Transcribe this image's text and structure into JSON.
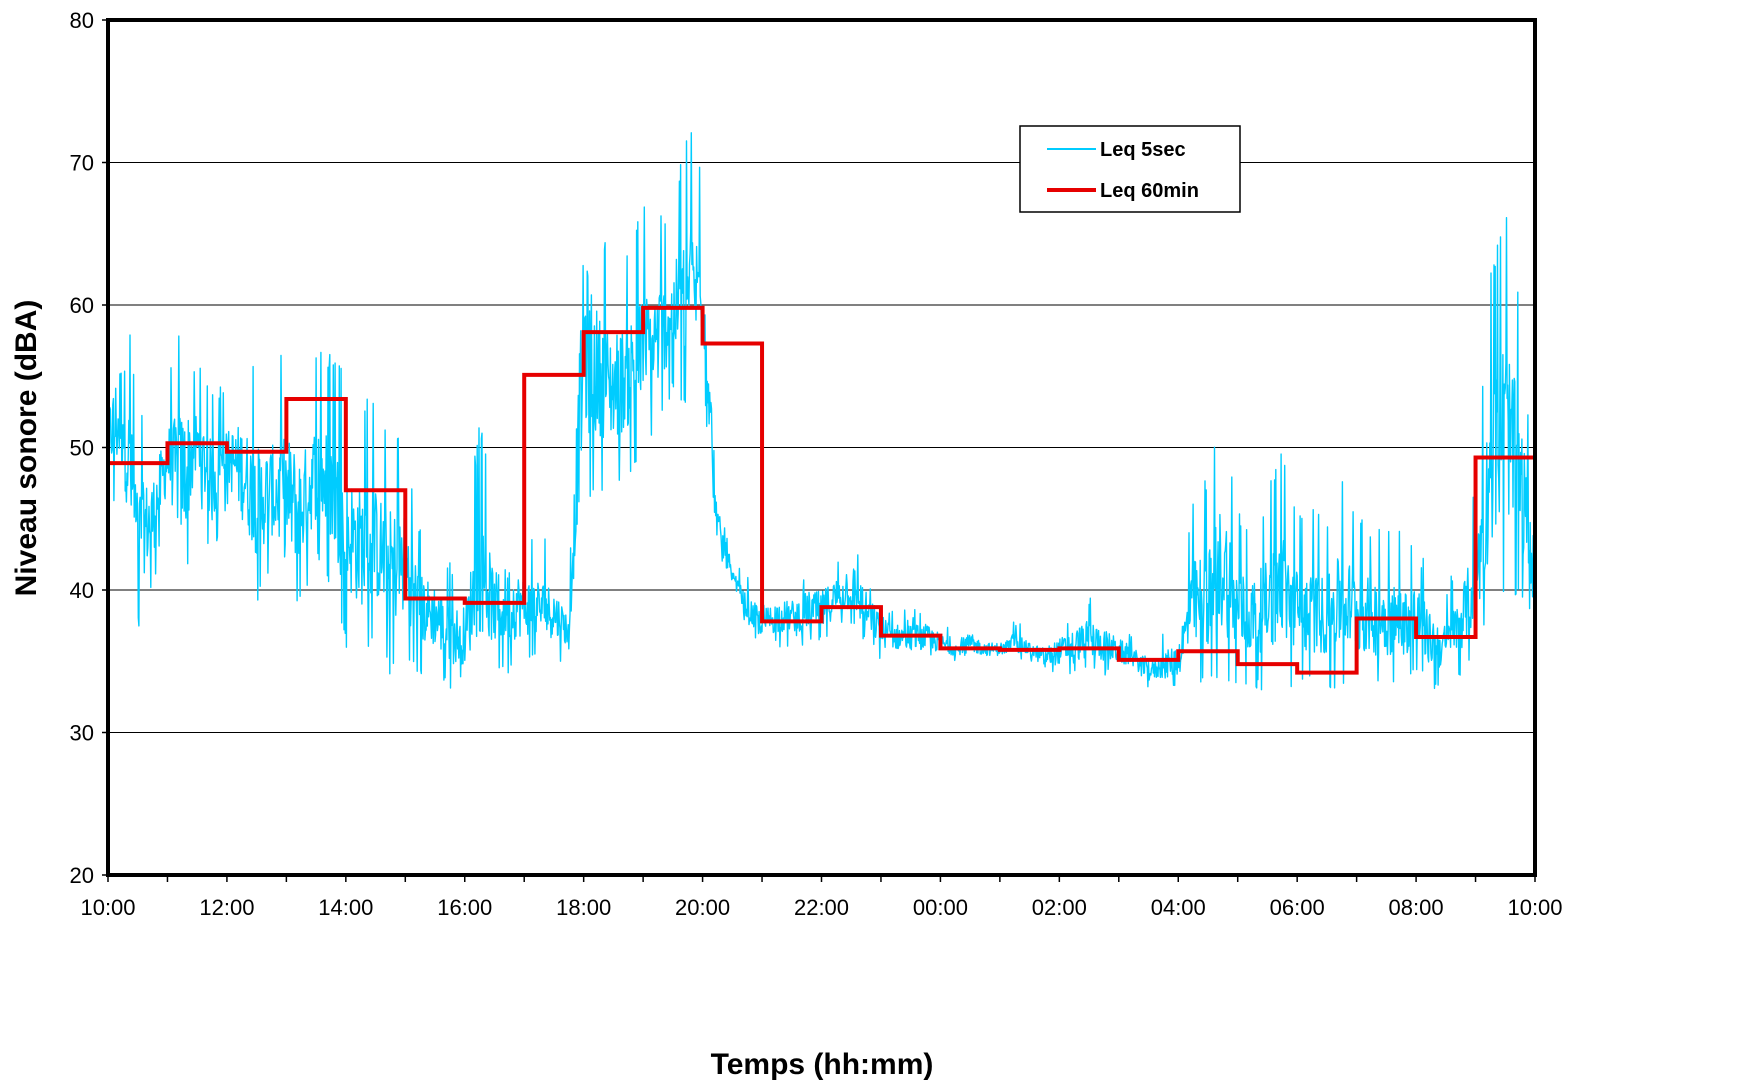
{
  "chart_data": {
    "type": "line",
    "title": "",
    "xlabel": "Temps (hh:mm)",
    "ylabel": "Niveau sonore (dBA)",
    "ylim": [
      20,
      80
    ],
    "yticks": [
      "20",
      "30",
      "40",
      "50",
      "60",
      "70",
      "80"
    ],
    "xticks": [
      "10:00",
      "12:00",
      "14:00",
      "16:00",
      "18:00",
      "20:00",
      "22:00",
      "00:00",
      "02:00",
      "04:00",
      "06:00",
      "08:00",
      "10:00"
    ],
    "x_unit": "hours elapsed from 10:00",
    "xlim": [
      0,
      24
    ],
    "grid": "horizontal major gridlines",
    "legend_position": "top-right",
    "series": [
      {
        "name": "Leq 5sec",
        "color": "#00ccff",
        "style": "thin line, dense 5-second samples (envelope approximated)",
        "envelope": [
          [
            0.0,
            47,
            56
          ],
          [
            0.25,
            44,
            64
          ],
          [
            0.5,
            37,
            53
          ],
          [
            0.75,
            40,
            52
          ],
          [
            1.0,
            45,
            55
          ],
          [
            1.25,
            39,
            60
          ],
          [
            1.5,
            46,
            56
          ],
          [
            1.75,
            42,
            55
          ],
          [
            2.0,
            46,
            54
          ],
          [
            2.25,
            42,
            57
          ],
          [
            2.5,
            39,
            56
          ],
          [
            2.75,
            41,
            55
          ],
          [
            3.0,
            38,
            58
          ],
          [
            3.25,
            39,
            55
          ],
          [
            3.5,
            42,
            57
          ],
          [
            3.75,
            40,
            57
          ],
          [
            4.0,
            36,
            55
          ],
          [
            4.25,
            35,
            54
          ],
          [
            4.5,
            36,
            53
          ],
          [
            4.75,
            34,
            52
          ],
          [
            5.0,
            35,
            51
          ],
          [
            5.25,
            34,
            45
          ],
          [
            5.5,
            34,
            44
          ],
          [
            5.75,
            33,
            42
          ],
          [
            6.0,
            33,
            42
          ],
          [
            6.25,
            33,
            53
          ],
          [
            6.5,
            34,
            45
          ],
          [
            6.75,
            34,
            46
          ],
          [
            7.0,
            35,
            44
          ],
          [
            7.25,
            35,
            44
          ],
          [
            7.5,
            35,
            43
          ],
          [
            7.75,
            35,
            40
          ],
          [
            8.0,
            45,
            74
          ],
          [
            8.25,
            47,
            66
          ],
          [
            8.5,
            47,
            64
          ],
          [
            8.75,
            48,
            65
          ],
          [
            9.0,
            49,
            67
          ],
          [
            9.25,
            51,
            67
          ],
          [
            9.5,
            54,
            67
          ],
          [
            9.75,
            52,
            73
          ],
          [
            10.0,
            55,
            70
          ],
          [
            10.25,
            42,
            48
          ],
          [
            10.5,
            40,
            42
          ],
          [
            10.75,
            37,
            41
          ],
          [
            11.0,
            36,
            40
          ],
          [
            11.25,
            36,
            41
          ],
          [
            11.5,
            36,
            41
          ],
          [
            11.75,
            36,
            42
          ],
          [
            12.0,
            36,
            42
          ],
          [
            12.25,
            37,
            43
          ],
          [
            12.5,
            37,
            45
          ],
          [
            12.75,
            36,
            42
          ],
          [
            13.0,
            35,
            40
          ],
          [
            13.25,
            35,
            39
          ],
          [
            13.5,
            35,
            39
          ],
          [
            13.75,
            35,
            39
          ],
          [
            14.0,
            35,
            38
          ],
          [
            14.25,
            35,
            37
          ],
          [
            14.5,
            35,
            38
          ],
          [
            14.75,
            35,
            37
          ],
          [
            15.0,
            35,
            37
          ],
          [
            15.25,
            35,
            38
          ],
          [
            15.5,
            35,
            37
          ],
          [
            15.75,
            34,
            37
          ],
          [
            16.0,
            34,
            38
          ],
          [
            16.25,
            34,
            39
          ],
          [
            16.5,
            34,
            40
          ],
          [
            16.75,
            34,
            39
          ],
          [
            17.0,
            34,
            38
          ],
          [
            17.25,
            34,
            37
          ],
          [
            17.5,
            33,
            36
          ],
          [
            17.75,
            33,
            37
          ],
          [
            18.0,
            33,
            38
          ],
          [
            18.25,
            33,
            47
          ],
          [
            18.5,
            33,
            48
          ],
          [
            18.75,
            33,
            54
          ],
          [
            19.0,
            33,
            46
          ],
          [
            19.25,
            33,
            45
          ],
          [
            19.5,
            33,
            47
          ],
          [
            19.75,
            33,
            50
          ],
          [
            20.0,
            33,
            46
          ],
          [
            20.25,
            33,
            46
          ],
          [
            20.5,
            33,
            45
          ],
          [
            20.75,
            33,
            48
          ],
          [
            21.0,
            33,
            46
          ],
          [
            21.25,
            33,
            45
          ],
          [
            21.5,
            33,
            45
          ],
          [
            21.75,
            33,
            44
          ],
          [
            22.0,
            34,
            44
          ],
          [
            22.25,
            33,
            41
          ],
          [
            22.5,
            33,
            40
          ],
          [
            22.75,
            34,
            43
          ],
          [
            23.0,
            35,
            48
          ],
          [
            23.25,
            38,
            62
          ],
          [
            23.5,
            40,
            68
          ],
          [
            23.75,
            39,
            60
          ],
          [
            24.0,
            37,
            46
          ]
        ]
      },
      {
        "name": "Leq 60min",
        "color": "#e60000",
        "style": "thick step line (hourly)",
        "x": [
          0,
          1,
          2,
          3,
          4,
          5,
          6,
          7,
          8,
          9,
          10,
          11,
          12,
          13,
          14,
          15,
          16,
          17,
          18,
          19,
          20,
          21,
          22,
          23
        ],
        "values": [
          48.9,
          50.3,
          49.7,
          53.4,
          47.0,
          39.4,
          39.1,
          55.1,
          58.1,
          59.8,
          57.3,
          37.8,
          38.8,
          36.8,
          35.9,
          35.8,
          35.9,
          35.1,
          35.7,
          34.8,
          34.2,
          38.0,
          36.7,
          49.3
        ]
      }
    ]
  }
}
